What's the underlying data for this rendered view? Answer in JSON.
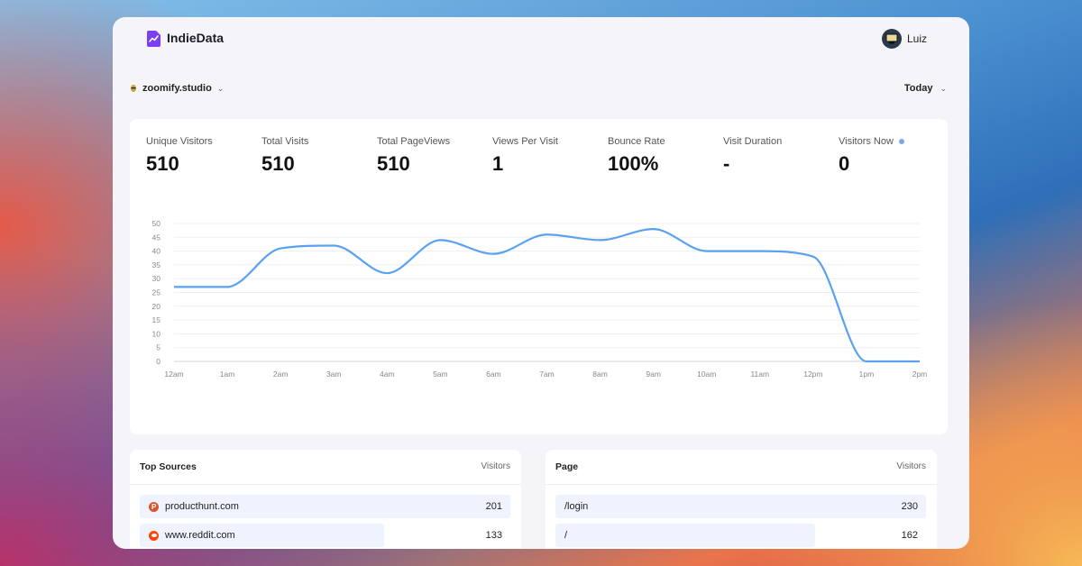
{
  "app": {
    "brand": "IndieData",
    "user": "Luiz"
  },
  "filters": {
    "site": "zoomify.studio",
    "range": "Today"
  },
  "stats": [
    {
      "label": "Unique Visitors",
      "value": "510"
    },
    {
      "label": "Total Visits",
      "value": "510"
    },
    {
      "label": "Total PageViews",
      "value": "510"
    },
    {
      "label": "Views Per Visit",
      "value": "1"
    },
    {
      "label": "Bounce Rate",
      "value": "100%"
    },
    {
      "label": "Visit Duration",
      "value": "-"
    },
    {
      "label": "Visitors Now",
      "value": "0"
    }
  ],
  "chart_data": {
    "type": "line",
    "x": [
      "12am",
      "1am",
      "2am",
      "3am",
      "4am",
      "5am",
      "6am",
      "7am",
      "8am",
      "9am",
      "10am",
      "11am",
      "12pm",
      "1pm",
      "2pm"
    ],
    "series": [
      {
        "values": [
          27,
          27,
          41,
          42,
          32,
          44,
          39,
          46,
          44,
          48,
          40,
          40,
          38,
          0,
          0
        ]
      }
    ],
    "yticks": [
      0,
      5,
      10,
      15,
      20,
      25,
      30,
      35,
      40,
      45,
      50
    ],
    "ylim": [
      0,
      50
    ],
    "grid": true,
    "color": "#5aa2ef"
  },
  "sources": {
    "title": "Top Sources",
    "column": "Visitors",
    "rows": [
      {
        "name": "producthunt.com",
        "value": "201",
        "fraction": 1.0,
        "icon": "producthunt-icon"
      },
      {
        "name": "www.reddit.com",
        "value": "133",
        "fraction": 0.66,
        "icon": "reddit-icon"
      }
    ]
  },
  "pages": {
    "title": "Page",
    "column": "Visitors",
    "rows": [
      {
        "name": "/login",
        "value": "230",
        "fraction": 1.0
      },
      {
        "name": "/",
        "value": "162",
        "fraction": 0.7
      }
    ]
  }
}
